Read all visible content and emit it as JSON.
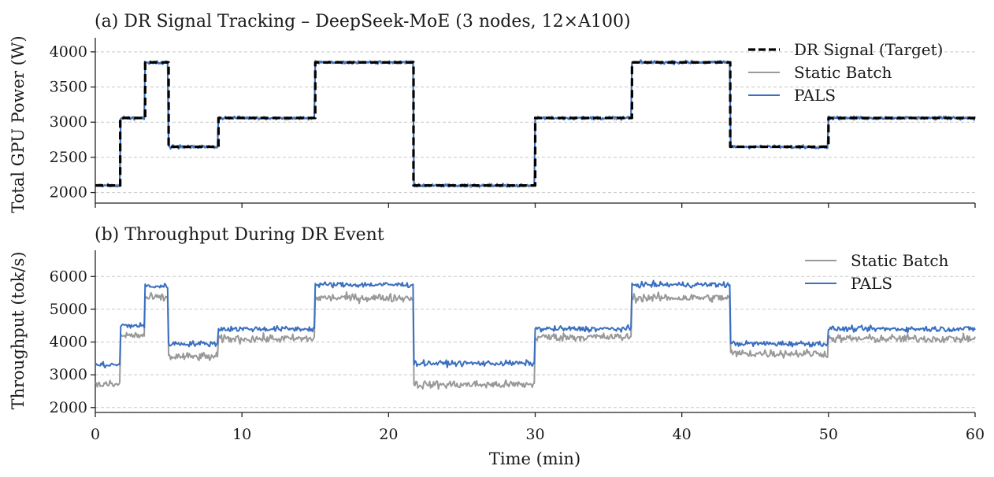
{
  "chart_data": [
    {
      "type": "line",
      "title": "(a) DR Signal Tracking – DeepSeek-MoE (3 nodes, 12×A100)",
      "xlabel": "",
      "ylabel": "Total GPU Power (W)",
      "xlim": [
        0,
        60
      ],
      "ylim": [
        1850,
        4200
      ],
      "xticks": [
        0,
        10,
        20,
        30,
        40,
        50,
        60
      ],
      "yticks": [
        2000,
        2500,
        3000,
        3500,
        4000
      ],
      "grid": "y-dashed",
      "legend": "top-right",
      "series": [
        {
          "name": "DR Signal (Target)",
          "color": "#000000",
          "style": "dashed",
          "steps": [
            {
              "x": 0,
              "y": 2100
            },
            {
              "x": 1.7,
              "y": 3060
            },
            {
              "x": 3.4,
              "y": 3850
            },
            {
              "x": 5.0,
              "y": 2650
            },
            {
              "x": 8.4,
              "y": 3060
            },
            {
              "x": 15.0,
              "y": 3850
            },
            {
              "x": 21.7,
              "y": 2100
            },
            {
              "x": 30.0,
              "y": 3060
            },
            {
              "x": 36.6,
              "y": 3850
            },
            {
              "x": 43.3,
              "y": 2650
            },
            {
              "x": 50.0,
              "y": 3060
            },
            {
              "x": 60.0,
              "y": 3060
            }
          ]
        },
        {
          "name": "Static Batch",
          "color": "#999999",
          "style": "solid",
          "noise": 22,
          "steps": [
            {
              "x": 0,
              "y": 2100
            },
            {
              "x": 1.7,
              "y": 3060
            },
            {
              "x": 3.4,
              "y": 3850
            },
            {
              "x": 5.0,
              "y": 2650
            },
            {
              "x": 8.4,
              "y": 3060
            },
            {
              "x": 15.0,
              "y": 3850
            },
            {
              "x": 21.7,
              "y": 2100
            },
            {
              "x": 30.0,
              "y": 3060
            },
            {
              "x": 36.6,
              "y": 3850
            },
            {
              "x": 43.3,
              "y": 2650
            },
            {
              "x": 50.0,
              "y": 3060
            },
            {
              "x": 60.0,
              "y": 3060
            }
          ]
        },
        {
          "name": "PALS",
          "color": "#3a6fbf",
          "style": "solid",
          "noise": 22,
          "steps": [
            {
              "x": 0,
              "y": 2100
            },
            {
              "x": 1.7,
              "y": 3060
            },
            {
              "x": 3.4,
              "y": 3850
            },
            {
              "x": 5.0,
              "y": 2650
            },
            {
              "x": 8.4,
              "y": 3060
            },
            {
              "x": 15.0,
              "y": 3850
            },
            {
              "x": 21.7,
              "y": 2100
            },
            {
              "x": 30.0,
              "y": 3060
            },
            {
              "x": 36.6,
              "y": 3850
            },
            {
              "x": 43.3,
              "y": 2650
            },
            {
              "x": 50.0,
              "y": 3060
            },
            {
              "x": 60.0,
              "y": 3060
            }
          ]
        }
      ]
    },
    {
      "type": "line",
      "title": "(b) Throughput During DR Event",
      "xlabel": "Time (min)",
      "ylabel": "Throughput (tok/s)",
      "xlim": [
        0,
        60
      ],
      "ylim": [
        1850,
        6800
      ],
      "xticks": [
        0,
        10,
        20,
        30,
        40,
        50,
        60
      ],
      "yticks": [
        2000,
        3000,
        4000,
        5000,
        6000
      ],
      "grid": "y-dashed",
      "legend": "top-right",
      "series": [
        {
          "name": "Static Batch",
          "color": "#999999",
          "style": "solid",
          "noise": 120,
          "steps": [
            {
              "x": 0,
              "y": 2700
            },
            {
              "x": 1.7,
              "y": 4200
            },
            {
              "x": 3.4,
              "y": 5350
            },
            {
              "x": 5.0,
              "y": 3550
            },
            {
              "x": 8.4,
              "y": 4100
            },
            {
              "x": 15.0,
              "y": 5350
            },
            {
              "x": 21.7,
              "y": 2700
            },
            {
              "x": 30.0,
              "y": 4150
            },
            {
              "x": 36.6,
              "y": 5350
            },
            {
              "x": 43.3,
              "y": 3650
            },
            {
              "x": 50.0,
              "y": 4100
            },
            {
              "x": 60.0,
              "y": 4100
            }
          ]
        },
        {
          "name": "PALS",
          "color": "#3a6fbf",
          "style": "solid",
          "noise": 80,
          "steps": [
            {
              "x": 0,
              "y": 3300
            },
            {
              "x": 1.7,
              "y": 4500
            },
            {
              "x": 3.4,
              "y": 5700
            },
            {
              "x": 5.0,
              "y": 3950
            },
            {
              "x": 8.4,
              "y": 4400
            },
            {
              "x": 15.0,
              "y": 5750
            },
            {
              "x": 21.7,
              "y": 3350
            },
            {
              "x": 30.0,
              "y": 4400
            },
            {
              "x": 36.6,
              "y": 5750
            },
            {
              "x": 43.3,
              "y": 3950
            },
            {
              "x": 50.0,
              "y": 4400
            },
            {
              "x": 60.0,
              "y": 4400
            }
          ]
        }
      ]
    }
  ]
}
